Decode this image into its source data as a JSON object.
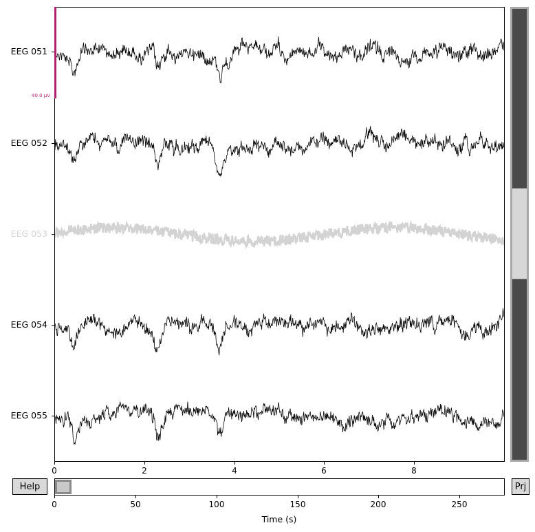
{
  "channels": [
    {
      "name": "EEG 051",
      "color": "#000000",
      "bad": false
    },
    {
      "name": "EEG 052",
      "color": "#000000",
      "bad": false
    },
    {
      "name": "EEG 053",
      "color": "#d3d3d3",
      "bad": true
    },
    {
      "name": "EEG 054",
      "color": "#000000",
      "bad": false
    },
    {
      "name": "EEG 055",
      "color": "#000000",
      "bad": false
    }
  ],
  "scale_bar": {
    "label": "40.0 µV",
    "color": "#b0206f"
  },
  "time_axis": {
    "ticks": [
      "0",
      "2",
      "4",
      "6",
      "8"
    ],
    "start": 0,
    "span": 9.95
  },
  "overview_axis": {
    "ticks": [
      "0",
      "50",
      "100",
      "150",
      "200",
      "250"
    ],
    "xlabel": "Time (s)",
    "max": 278
  },
  "buttons": {
    "help": "Help",
    "proj": "Prj"
  },
  "vertical_scrollbar": {
    "visible_fraction_start": 0.4,
    "visible_fraction_end": 0.6
  },
  "horizontal_scrollbar": {
    "window_start_s": 0,
    "window_span_s": 10
  }
}
